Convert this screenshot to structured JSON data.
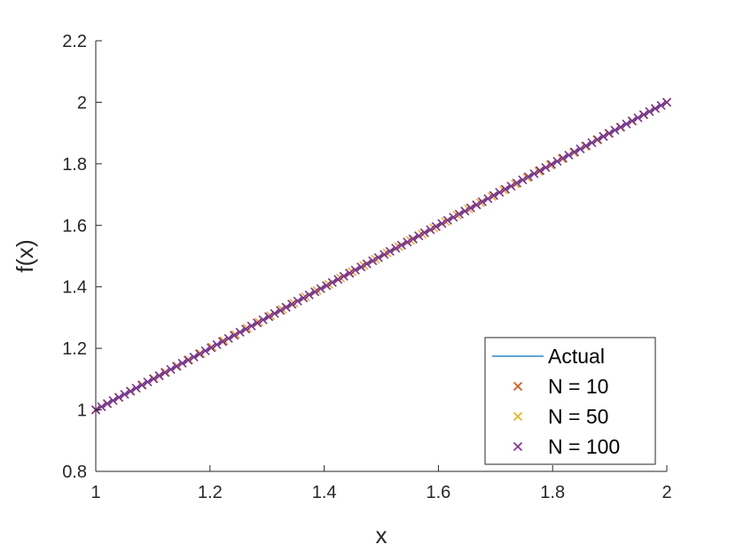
{
  "chart_data": {
    "type": "line",
    "title": "",
    "xlabel": "x",
    "ylabel": "f(x)",
    "xlim": [
      1,
      2
    ],
    "ylim": [
      0.8,
      2.2
    ],
    "xticks": [
      1,
      1.2,
      1.4,
      1.6,
      1.8,
      2
    ],
    "yticks": [
      0.8,
      1,
      1.2,
      1.4,
      1.6,
      1.8,
      2,
      2.2
    ],
    "grid": false,
    "legend_position": "bottom-right",
    "series": [
      {
        "name": "Actual",
        "style": "line",
        "color": "#0072BD",
        "x": [
          1,
          2
        ],
        "y": [
          1,
          2
        ]
      },
      {
        "name": "N = 10",
        "style": "x-marker",
        "color": "#D95319",
        "x": [
          1,
          1.1111,
          1.2222,
          1.3333,
          1.4444,
          1.5556,
          1.6667,
          1.7778,
          1.8889,
          2
        ],
        "y": [
          1,
          1.1111,
          1.2222,
          1.3333,
          1.4444,
          1.5556,
          1.6667,
          1.7778,
          1.8889,
          2
        ]
      },
      {
        "name": "N = 50",
        "style": "x-marker",
        "color": "#EDB120",
        "x_range": [
          1,
          2
        ],
        "count": 50,
        "relation": "y = x"
      },
      {
        "name": "N = 100",
        "style": "x-marker",
        "color": "#7E2F8E",
        "x_range": [
          1,
          2
        ],
        "count": 100,
        "relation": "y = x"
      }
    ]
  }
}
